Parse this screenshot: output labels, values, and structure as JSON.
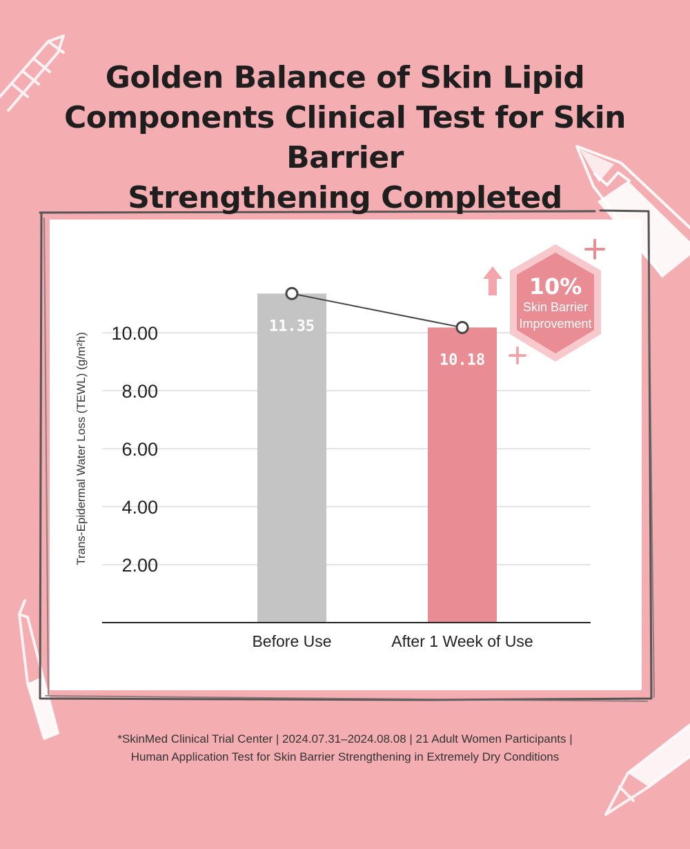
{
  "title_lines": [
    "Golden Balance of Skin Lipid",
    "Components Clinical Test for Skin Barrier",
    "Strengthening Completed"
  ],
  "chart_data": {
    "type": "bar",
    "categories": [
      "Before Use",
      "After 1 Week of Use"
    ],
    "values": [
      11.35,
      10.18
    ],
    "value_labels": [
      "11.35",
      "10.18"
    ],
    "bar_colors": [
      "#c4c4c4",
      "#e98c93"
    ],
    "ylabel": "Trans-Epidermal Water Loss (TEWL) (g/m²h)",
    "ytick_labels": [
      "2.00",
      "4.00",
      "6.00",
      "8.00",
      "10.00"
    ],
    "ylim": [
      0,
      12
    ],
    "grid": true,
    "trend_line": true
  },
  "badge": {
    "value": "10%",
    "line1": "Skin Barrier",
    "line2": "Improvement",
    "color": "#e98c93"
  },
  "footnote": {
    "line1": "*SkinMed Clinical Trial Center | 2024.07.31–2024.08.08 | 21 Adult Women Participants |",
    "line2": "Human Application Test for Skin Barrier Strengthening in Extremely Dry Conditions"
  },
  "colors": {
    "background": "#f4aeb2",
    "accent": "#e98c93",
    "neutral_bar": "#c4c4c4"
  }
}
